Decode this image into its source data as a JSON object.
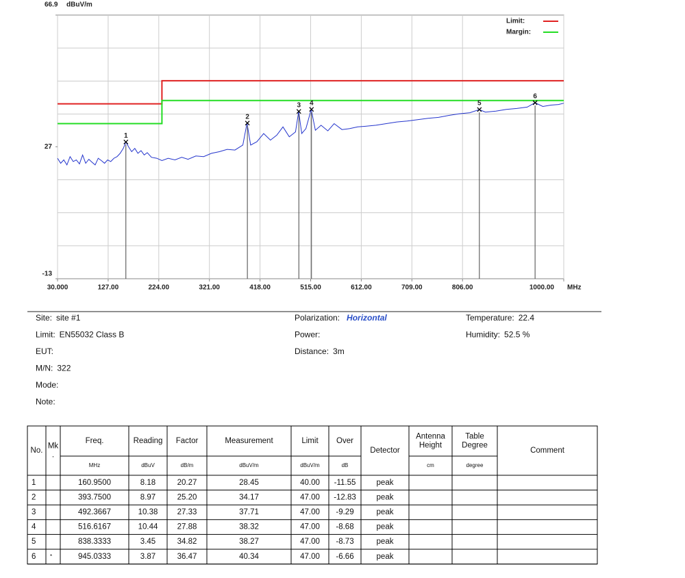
{
  "chart_data": {
    "type": "line",
    "y_unit": "dBuV/m",
    "x_unit": "MHz",
    "xlim": [
      30,
      1000
    ],
    "ylim": [
      -13,
      66.9
    ],
    "xticks": [
      {
        "value": 30,
        "label": "30.000"
      },
      {
        "value": 127,
        "label": "127.00"
      },
      {
        "value": 224,
        "label": "224.00"
      },
      {
        "value": 321,
        "label": "321.00"
      },
      {
        "value": 418,
        "label": "418.00"
      },
      {
        "value": 515,
        "label": "515.00"
      },
      {
        "value": 612,
        "label": "612.00"
      },
      {
        "value": 709,
        "label": "709.00"
      },
      {
        "value": 806,
        "label": "806.00"
      },
      {
        "value": 1000,
        "label": "1000.00"
      }
    ],
    "yticks": [
      66.9,
      27,
      -13
    ],
    "ygrid": [
      56.9,
      46.9,
      36.9,
      17,
      7,
      -3
    ],
    "grid": true,
    "legend": "top-right",
    "trace": {
      "color": "#2233cc",
      "x": [
        30,
        36,
        42,
        48,
        54,
        60,
        66,
        72,
        78,
        84,
        90,
        96,
        102,
        108,
        114,
        120,
        126,
        132,
        138,
        144,
        150,
        156,
        161,
        166,
        172,
        178,
        184,
        190,
        196,
        202,
        210,
        220,
        230,
        242,
        255,
        268,
        280,
        295,
        310,
        325,
        340,
        355,
        370,
        385,
        393,
        400,
        412,
        425,
        438,
        450,
        462,
        474,
        486,
        492,
        498,
        506,
        516,
        524,
        535,
        548,
        560,
        575,
        590,
        605,
        620,
        640,
        660,
        680,
        700,
        720,
        740,
        760,
        780,
        800,
        820,
        838,
        850,
        870,
        890,
        910,
        930,
        945,
        960,
        975,
        990,
        1000
      ],
      "values": [
        23.5,
        22.0,
        23.0,
        21.5,
        24.0,
        22.5,
        23.0,
        21.8,
        24.5,
        22.0,
        23.2,
        22.3,
        21.5,
        23.5,
        22.8,
        22.0,
        23.0,
        22.5,
        23.5,
        24.0,
        25.0,
        26.5,
        28.45,
        27.0,
        25.5,
        26.5,
        25.0,
        25.8,
        24.5,
        25.2,
        23.8,
        23.5,
        22.8,
        23.5,
        23.0,
        23.8,
        23.2,
        24.2,
        24.0,
        25.0,
        25.5,
        26.2,
        26.0,
        27.5,
        34.17,
        27.5,
        28.5,
        31.0,
        29.0,
        30.5,
        33.0,
        30.0,
        31.5,
        37.71,
        31.0,
        32.5,
        38.32,
        32.0,
        33.5,
        31.8,
        34.0,
        32.2,
        32.5,
        33.0,
        33.2,
        33.5,
        34.0,
        34.5,
        34.8,
        35.2,
        35.6,
        35.9,
        36.5,
        37.0,
        37.3,
        38.27,
        37.5,
        37.8,
        38.3,
        38.6,
        39.0,
        40.34,
        39.2,
        39.6,
        39.8,
        40.2
      ]
    },
    "series": [
      {
        "name": "Limit:",
        "color": "#e02020",
        "x": [
          30,
          230,
          230,
          1000
        ],
        "values": [
          40,
          40,
          47,
          47
        ]
      },
      {
        "name": "Margin:",
        "color": "#22dd22",
        "x": [
          30,
          230,
          230,
          1000
        ],
        "values": [
          34,
          34,
          41,
          41
        ]
      }
    ],
    "markers": [
      {
        "label": "1",
        "x": 160.95,
        "value": 28.45
      },
      {
        "label": "2",
        "x": 393.75,
        "value": 34.17
      },
      {
        "label": "3",
        "x": 492.3667,
        "value": 37.71
      },
      {
        "label": "4",
        "x": 516.6167,
        "value": 38.32
      },
      {
        "label": "5",
        "x": 838.3333,
        "value": 38.27
      },
      {
        "label": "6",
        "x": 945.0333,
        "value": 40.34
      }
    ]
  },
  "info": {
    "left": [
      {
        "label": "Site:",
        "value": "site #1"
      },
      {
        "label": "Limit:",
        "value": "EN55032 Class B"
      },
      {
        "label": "EUT:"
      },
      {
        "label": "M/N:",
        "value": "322"
      },
      {
        "label": "Mode:"
      },
      {
        "label": "Note:"
      }
    ],
    "middle": [
      {
        "label": "Polarization:",
        "value": "Horizontal",
        "color": "#2a4fc8"
      },
      {
        "label": "Power:"
      },
      {
        "label": "Distance:",
        "value": "3m"
      }
    ],
    "right": [
      {
        "label": "Temperature:",
        "value": "22.4"
      },
      {
        "label": "Humidity:",
        "value": "52.5 %"
      }
    ]
  },
  "table": {
    "columns": [
      {
        "title": [
          "No."
        ]
      },
      {
        "title": [
          "Mk",
          "."
        ]
      },
      {
        "title": [
          "Freq."
        ],
        "unit": "MHz"
      },
      {
        "title": [
          "Reading"
        ],
        "unit": "dBuV"
      },
      {
        "title": [
          "Factor"
        ],
        "unit": "dB/m"
      },
      {
        "title": [
          "Measurement"
        ],
        "unit": "dBuV/m"
      },
      {
        "title": [
          "Limit"
        ],
        "unit": "dBuV/m"
      },
      {
        "title": [
          "Over"
        ],
        "unit": "dB"
      },
      {
        "title": [
          "Detector"
        ]
      },
      {
        "title": [
          "Antenna",
          "Height"
        ],
        "unit": "cm"
      },
      {
        "title": [
          "Table",
          "Degree"
        ],
        "unit": "degree"
      },
      {
        "title": [
          "Comment"
        ]
      }
    ],
    "rows": [
      [
        "1",
        null,
        "160.9500",
        "8.18",
        "20.27",
        "28.45",
        "40.00",
        "-11.55",
        "peak",
        null,
        null,
        null
      ],
      [
        "2",
        null,
        "393.7500",
        "8.97",
        "25.20",
        "34.17",
        "47.00",
        "-12.83",
        "peak",
        null,
        null,
        null
      ],
      [
        "3",
        null,
        "492.3667",
        "10.38",
        "27.33",
        "37.71",
        "47.00",
        "-9.29",
        "peak",
        null,
        null,
        null
      ],
      [
        "4",
        null,
        "516.6167",
        "10.44",
        "27.88",
        "38.32",
        "47.00",
        "-8.68",
        "peak",
        null,
        null,
        null
      ],
      [
        "5",
        null,
        "838.3333",
        "3.45",
        "34.82",
        "38.27",
        "47.00",
        "-8.73",
        "peak",
        null,
        null,
        null
      ],
      [
        "6",
        "*",
        "945.0333",
        "3.87",
        "36.47",
        "40.34",
        "47.00",
        "-6.66",
        "peak",
        null,
        null,
        null
      ]
    ]
  }
}
